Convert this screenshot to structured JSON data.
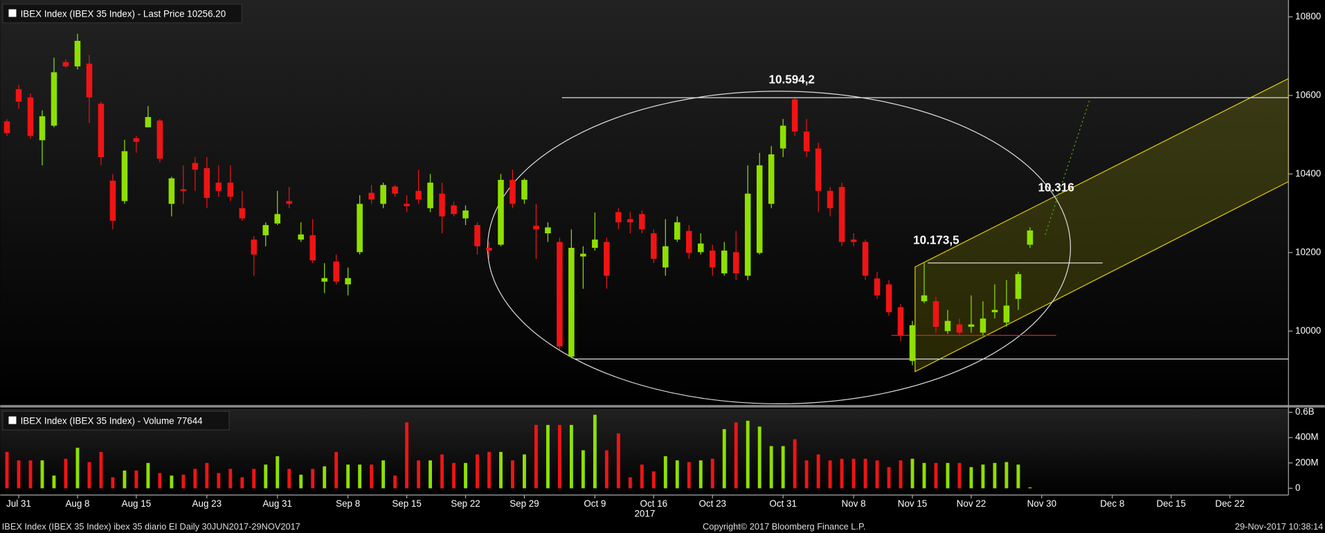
{
  "chart_data": [
    {
      "type": "candlestick",
      "title": "IBEX Index (IBEX 35 Index) - Last Price 10256.20",
      "categories": [
        null,
        "Jul 31",
        null,
        null,
        null,
        null,
        "Aug 8",
        null,
        null,
        null,
        null,
        "Aug 15",
        null,
        null,
        null,
        null,
        null,
        "Aug 23",
        null,
        null,
        null,
        null,
        null,
        "Aug 31",
        null,
        null,
        null,
        null,
        null,
        "Sep 8",
        null,
        null,
        null,
        null,
        "Sep 15",
        null,
        null,
        null,
        null,
        "Sep 22",
        null,
        null,
        null,
        null,
        "Sep 29",
        null,
        null,
        null,
        null,
        null,
        "Oct 9",
        null,
        null,
        null,
        null,
        "Oct 16",
        null,
        null,
        null,
        null,
        "Oct 23",
        null,
        null,
        null,
        null,
        null,
        "Oct 31",
        null,
        null,
        null,
        null,
        null,
        "Nov 8",
        null,
        null,
        null,
        null,
        "Nov 15",
        null,
        null,
        null,
        null,
        "Nov 22",
        null,
        null,
        null,
        null,
        null,
        "Nov 30",
        null,
        null,
        null,
        null,
        null,
        "Dec 8",
        null,
        null,
        null,
        null,
        "Dec 15",
        null,
        null,
        null,
        null,
        "Dec 22",
        null,
        null,
        null,
        null,
        null
      ],
      "year_label": "2017",
      "open": [
        10534,
        10616,
        10595,
        10486,
        10523,
        10685,
        10674,
        10681,
        10579,
        10383,
        10331,
        10491,
        10519,
        10536,
        10324,
        10361,
        10428,
        10415,
        10378,
        10378,
        10313,
        10233,
        10244,
        10274,
        10331,
        10233,
        10244,
        10126,
        10177,
        10119,
        10201,
        10352,
        10324,
        10368,
        10324,
        10357,
        10313,
        10350,
        10320,
        10287,
        10270,
        10212,
        10220,
        10385,
        10335,
        10268,
        10249,
        10227,
        9935,
        10190,
        10212,
        10227,
        10303,
        10285,
        10298,
        10249,
        10162,
        10233,
        10255,
        10201,
        10205,
        10147,
        10201,
        10141,
        10199,
        10324,
        10465,
        10590,
        10508,
        10465,
        10357,
        10367,
        10233,
        10227,
        10134,
        10119,
        10061,
        9924,
        10076,
        10076,
        10000,
        10017,
        10011,
        9996,
        10048,
        10022,
        10082,
        10220,
        null,
        null,
        null,
        null,
        null,
        null,
        null,
        null,
        null,
        null,
        null,
        null,
        null,
        null,
        null,
        null,
        null,
        null,
        null,
        null,
        null,
        null
      ],
      "high": [
        10540,
        10627,
        10605,
        10562,
        10696,
        10692,
        10757,
        10703,
        10584,
        10400,
        10487,
        10497,
        10573,
        10540,
        10393,
        10422,
        10443,
        10443,
        10422,
        10422,
        10357,
        10242,
        10277,
        10357,
        10367,
        10277,
        10285,
        10173,
        10195,
        10162,
        10346,
        10372,
        10378,
        10372,
        10346,
        10411,
        10400,
        10378,
        10329,
        10320,
        10277,
        10227,
        10400,
        10411,
        10389,
        10324,
        10277,
        10238,
        10259,
        10216,
        10302,
        10238,
        10313,
        10303,
        10307,
        10259,
        10285,
        10292,
        10270,
        10249,
        10220,
        10227,
        10255,
        10422,
        10454,
        10471,
        10540,
        10594.2,
        10540,
        10480,
        10367,
        10378,
        10249,
        10233,
        10151,
        10130,
        10069,
        10026,
        10173.5,
        10087,
        10054,
        10032,
        10091,
        10076,
        10119,
        10130,
        10151,
        10264,
        null,
        null,
        null,
        null,
        null,
        null,
        null,
        null,
        null,
        null,
        null,
        null,
        null,
        null,
        null,
        null,
        null,
        null,
        null,
        null,
        null,
        null
      ],
      "low": [
        10497,
        10566,
        10490,
        10422,
        10519,
        10670,
        10666,
        10530,
        10422,
        10259,
        10324,
        10454,
        10519,
        10430,
        10292,
        10324,
        10357,
        10313,
        10342,
        10331,
        10281,
        10141,
        10216,
        10270,
        10313,
        10227,
        10173,
        10097,
        10119,
        10091,
        10195,
        10324,
        10313,
        10342,
        10303,
        10324,
        10303,
        10249,
        10292,
        10270,
        10195,
        10184,
        10216,
        10313,
        10324,
        10184,
        10227,
        9952,
        9931,
        10108,
        10205,
        10108,
        10259,
        10249,
        10249,
        10173,
        10141,
        10227,
        10184,
        10195,
        10141,
        10141,
        10130,
        10130,
        10195,
        10313,
        10443,
        10497,
        10443,
        10303,
        10292,
        10216,
        10216,
        10130,
        10082,
        10039,
        9974,
        9913,
        10071,
        9996,
        9993,
        9989,
        9996,
        9989,
        10032,
        10011,
        10054,
        10212,
        null,
        null,
        null,
        null,
        null,
        null,
        null,
        null,
        null,
        null,
        null,
        null,
        null,
        null,
        null,
        null,
        null,
        null,
        null,
        null,
        null,
        null
      ],
      "close": [
        10504,
        10584,
        10497,
        10547,
        10659,
        10674,
        10739,
        10595,
        10443,
        10281,
        10458,
        10482,
        10545,
        10439,
        10389,
        10357,
        10411,
        10339,
        10357,
        10342,
        10287,
        10195,
        10270,
        10298,
        10324,
        10246,
        10180,
        10135,
        10126,
        10135,
        10324,
        10335,
        10372,
        10350,
        10318,
        10335,
        10378,
        10292,
        10298,
        10307,
        10216,
        10205,
        10385,
        10324,
        10385,
        10259,
        10264,
        9961,
        10212,
        10197,
        10233,
        10141,
        10277,
        10277,
        10259,
        10184,
        10216,
        10277,
        10199,
        10223,
        10162,
        10205,
        10147,
        10350,
        10422,
        10450,
        10523,
        10508,
        10458,
        10357,
        10313,
        10227,
        10227,
        10141,
        10091,
        10048,
        9989,
        10015,
        10091,
        10011,
        10026,
        9996,
        10017,
        10032,
        10054,
        10065,
        10145,
        10256.2,
        null,
        null,
        null,
        null,
        null,
        null,
        null,
        null,
        null,
        null,
        null,
        null,
        null,
        null,
        null,
        null,
        null,
        null,
        null,
        null,
        null,
        null
      ],
      "up_color": "#8ee000",
      "down_color": "#f01414",
      "ylim": [
        9815,
        10843
      ],
      "yticks": [
        10000,
        10200,
        10400,
        10600,
        10800
      ],
      "annotations": [
        {
          "label": "10.594,2",
          "value": 10594.2
        },
        {
          "label": "10.173,5",
          "value": 10173.5
        },
        {
          "label": "10.316",
          "value": 10316
        }
      ]
    },
    {
      "type": "bar",
      "title": "IBEX Index (IBEX 35 Index) - Volume 77644",
      "values": [
        287,
        220,
        220,
        220,
        100,
        233,
        320,
        207,
        287,
        87,
        140,
        140,
        200,
        120,
        100,
        107,
        153,
        200,
        120,
        153,
        87,
        153,
        187,
        253,
        153,
        107,
        153,
        173,
        287,
        187,
        187,
        187,
        220,
        100,
        520,
        220,
        220,
        267,
        200,
        200,
        267,
        287,
        287,
        220,
        267,
        500,
        500,
        500,
        500,
        300,
        580,
        300,
        433,
        87,
        187,
        133,
        253,
        220,
        207,
        220,
        233,
        467,
        520,
        533,
        487,
        333,
        333,
        387,
        220,
        267,
        220,
        233,
        233,
        233,
        220,
        167,
        220,
        233,
        200,
        200,
        200,
        200,
        167,
        187,
        200,
        207,
        187,
        7,
        null,
        null,
        null,
        null,
        null,
        null,
        null,
        null,
        null,
        null,
        null,
        null,
        null,
        null,
        null,
        null,
        null,
        null,
        null,
        null,
        null,
        null
      ],
      "ylim": [
        -53,
        627
      ],
      "yticks": [
        0,
        {
          "value": 200,
          "label": "200M"
        },
        {
          "value": 400,
          "label": "400M"
        },
        {
          "value": 600,
          "label": "0.6B"
        }
      ]
    }
  ],
  "footer": {
    "left": "IBEX Index (IBEX 35 Index) ibex 35 diario EI  Daily 30JUN2017-29NOV2017",
    "center": "Copyright© 2017 Bloomberg Finance L.P.",
    "right": "29-Nov-2017 10:38:14"
  }
}
